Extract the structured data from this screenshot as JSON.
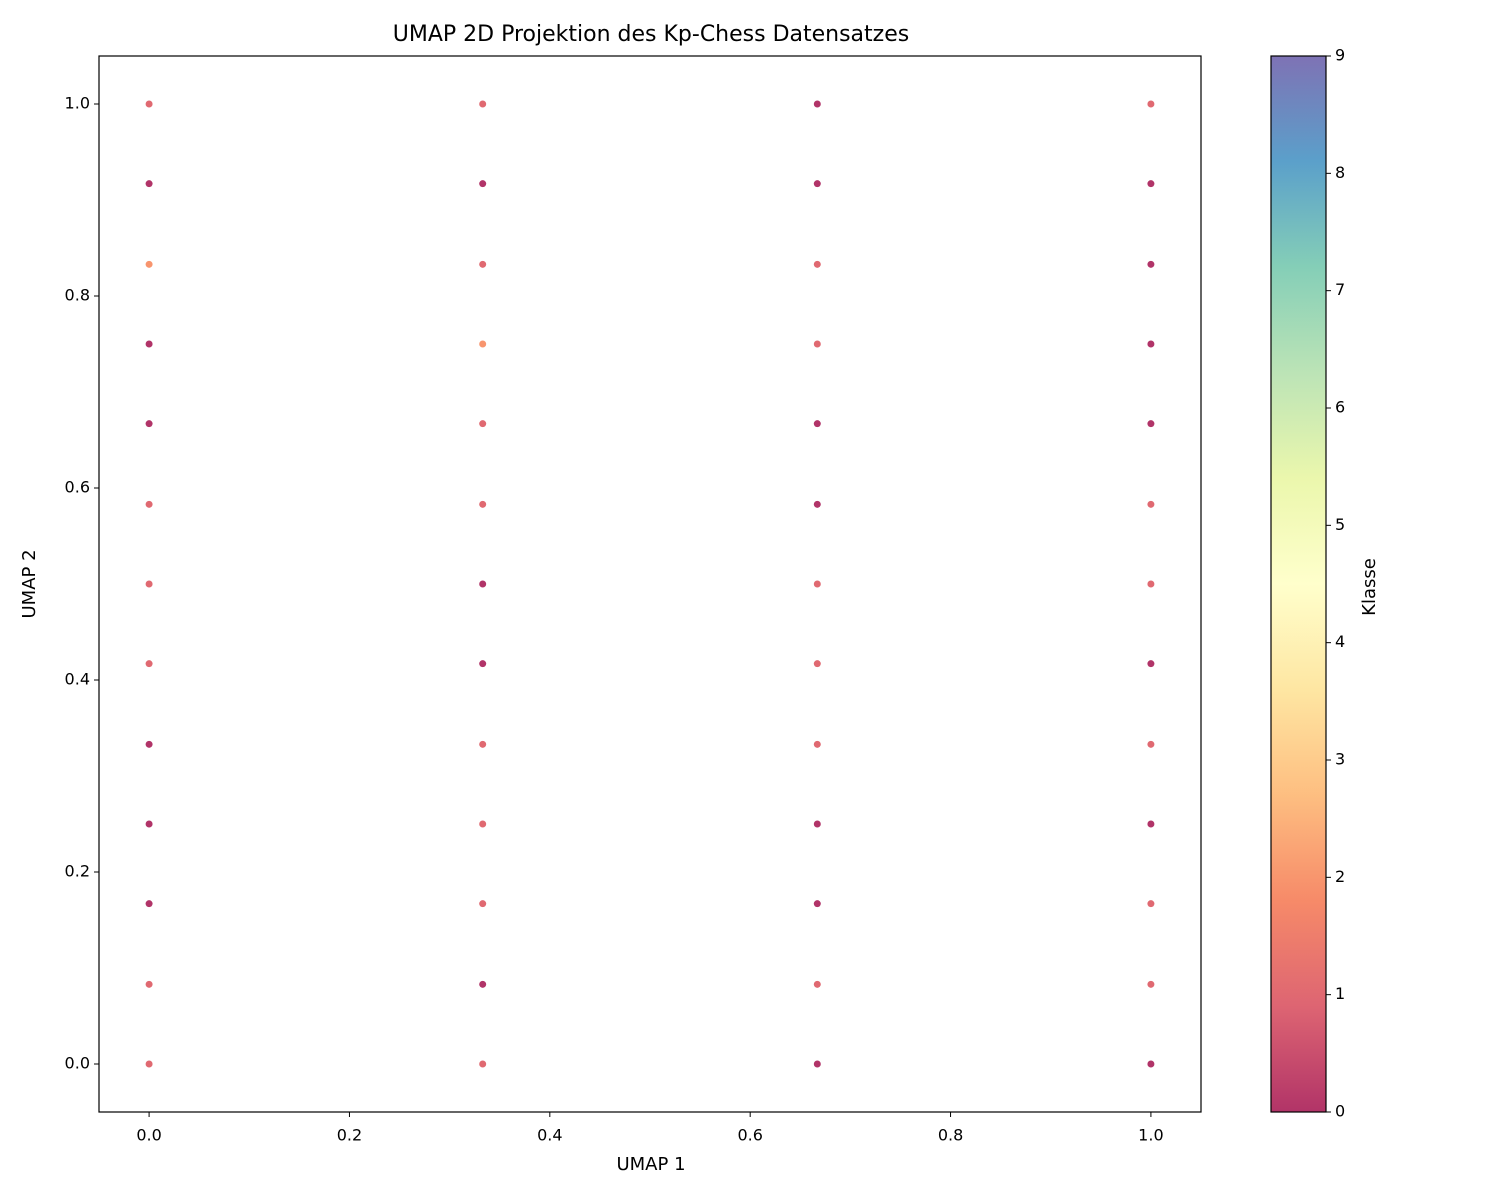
{
  "chart_data": {
    "type": "scatter",
    "title": "UMAP 2D Projektion des Kp-Chess Datensatzes",
    "xlabel": "UMAP 1",
    "ylabel": "UMAP 2",
    "x": [
      0,
      0,
      0,
      0,
      0,
      0,
      0,
      0,
      0,
      0,
      0,
      0,
      0,
      0.333,
      0.333,
      0.333,
      0.333,
      0.333,
      0.333,
      0.333,
      0.333,
      0.333,
      0.333,
      0.333,
      0.333,
      0.333,
      0.667,
      0.667,
      0.667,
      0.667,
      0.667,
      0.667,
      0.667,
      0.667,
      0.667,
      0.667,
      0.667,
      0.667,
      0.667,
      1,
      1,
      1,
      1,
      1,
      1,
      1,
      1,
      1,
      1,
      1,
      1,
      1
    ],
    "values": [
      0,
      0.083,
      0.167,
      0.25,
      0.333,
      0.417,
      0.5,
      0.583,
      0.667,
      0.75,
      0.833,
      0.917,
      1,
      0,
      0.083,
      0.167,
      0.25,
      0.333,
      0.417,
      0.5,
      0.583,
      0.667,
      0.75,
      0.833,
      0.917,
      1,
      0,
      0.083,
      0.167,
      0.25,
      0.333,
      0.417,
      0.5,
      0.583,
      0.667,
      0.75,
      0.833,
      0.917,
      1,
      0,
      0.083,
      0.167,
      0.25,
      0.333,
      0.417,
      0.5,
      0.583,
      0.667,
      0.75,
      0.833,
      0.917,
      1
    ],
    "classes": [
      1,
      1,
      0,
      0,
      0,
      1,
      1,
      1,
      0,
      0,
      2,
      0,
      1,
      1,
      0,
      1,
      1,
      1,
      0,
      0,
      1,
      1,
      2,
      1,
      0,
      1,
      0,
      1,
      0,
      0,
      1,
      1,
      1,
      0,
      0,
      1,
      1,
      0,
      0,
      0,
      1,
      1,
      0,
      1,
      0,
      1,
      1,
      0,
      0,
      0,
      0,
      1
    ],
    "xlim": [
      -0.05,
      1.05
    ],
    "xticks": [
      {
        "value": 0,
        "label": "0.0"
      },
      0.2,
      0.4,
      0.6,
      0.8,
      {
        "value": 1,
        "label": "1.0"
      }
    ],
    "ylim": [
      -0.05,
      1.05
    ],
    "yticks": [
      {
        "value": 0,
        "label": "0.0"
      },
      0.2,
      0.4,
      0.6,
      0.8,
      {
        "value": 1,
        "label": "1.0"
      }
    ],
    "colorbar": {
      "label": "Klasse",
      "colormap": "Spectral",
      "lim": [
        0,
        9
      ],
      "ticks": [
        0,
        1,
        2,
        3,
        4,
        5,
        6,
        7,
        8,
        9
      ]
    }
  }
}
